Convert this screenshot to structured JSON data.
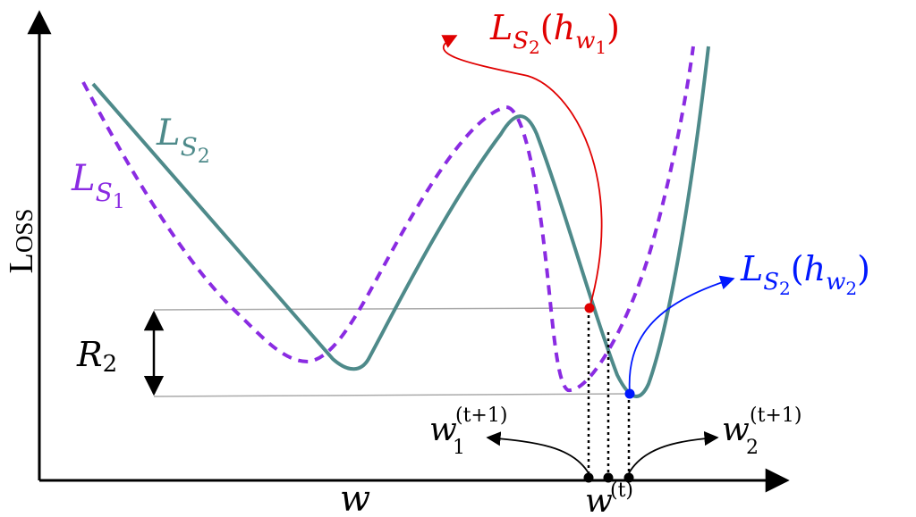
{
  "diagram": {
    "axes": {
      "y_label": "Loss",
      "x_label": "w"
    },
    "curves": [
      {
        "name": "L_S2",
        "main": "L",
        "sub": "S",
        "subsub": "2",
        "color": "#4e8a8a",
        "style": "solid"
      },
      {
        "name": "L_S1",
        "main": "L",
        "sub": "S",
        "subsub": "1",
        "color": "#8a2be2",
        "style": "dashed"
      }
    ],
    "annotations": {
      "risk": {
        "main": "R",
        "sub": "2"
      },
      "h1": {
        "L": "L",
        "S": "S",
        "Ssub": "2",
        "open": "(",
        "h": "h",
        "w": "w",
        "wsub": "1",
        "close": ")",
        "color": "#e00000"
      },
      "h2": {
        "L": "L",
        "S": "S",
        "Ssub": "2",
        "open": "(",
        "h": "h",
        "w": "w",
        "wsub": "2",
        "close": ")",
        "color": "#0018ff"
      },
      "w1_next": {
        "base": "w",
        "sub": "1",
        "sup": "(t+1)"
      },
      "w2_next": {
        "base": "w",
        "sub": "2",
        "sup": "(t+1)"
      },
      "w_t": {
        "base": "w",
        "sup": "(t)"
      }
    }
  }
}
